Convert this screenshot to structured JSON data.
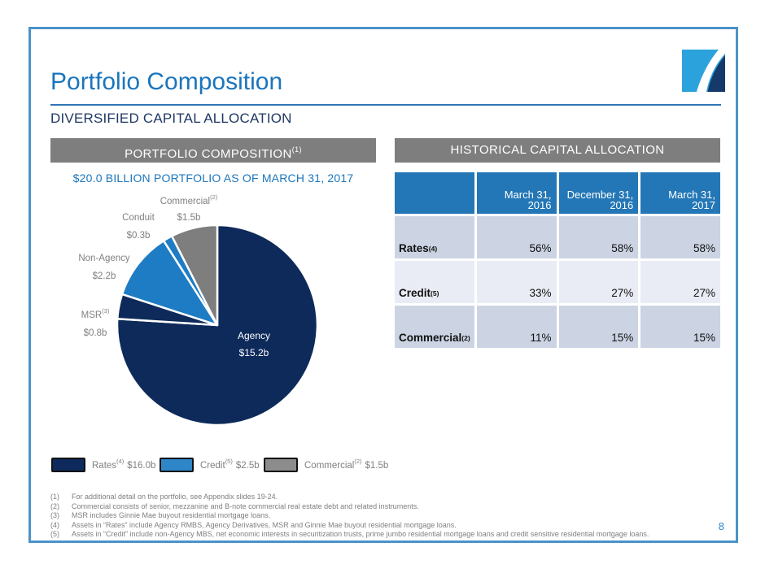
{
  "slide": {
    "title": "Portfolio Composition",
    "subtitle": "DIVERSIFIED CAPITAL ALLOCATION",
    "page_number": "8"
  },
  "left_panel": {
    "header": "PORTFOLIO COMPOSITION",
    "header_sup": "(1)"
  },
  "right_panel": {
    "header": "HISTORICAL CAPITAL ALLOCATION"
  },
  "chart_data": [
    {
      "type": "pie",
      "title": "$20.0 BILLION PORTFOLIO AS OF MARCH 31, 2017",
      "units": "USD billions",
      "total": 20.0,
      "start_angle": "12-oclock",
      "direction": "clockwise",
      "slices": [
        {
          "label": "Agency",
          "sup": "",
          "value": 15.2,
          "value_label": "$15.2b",
          "color": "#0d2a5a"
        },
        {
          "label": "MSR",
          "sup": "(3)",
          "value": 0.8,
          "value_label": "$0.8b",
          "color": "#0d2a5a"
        },
        {
          "label": "Non-Agency",
          "sup": "",
          "value": 2.2,
          "value_label": "$2.2b",
          "color": "#1e7cc4"
        },
        {
          "label": "Conduit",
          "sup": "",
          "value": 0.3,
          "value_label": "$0.3b",
          "color": "#1e7cc4"
        },
        {
          "label": "Commercial",
          "sup": "(2)",
          "value": 1.5,
          "value_label": "$1.5b",
          "color": "#7e7e7e"
        }
      ],
      "legend": [
        {
          "label": "Rates",
          "sup": "(4)",
          "value_label": "$16.0b",
          "color": "#0e2a5c"
        },
        {
          "label": "Credit",
          "sup": "(5)",
          "value_label": "$2.5b",
          "color": "#2e86c8"
        },
        {
          "label": "Commercial",
          "sup": "(2)",
          "value_label": "$1.5b",
          "color": "#8c8c8c"
        }
      ]
    },
    {
      "type": "table",
      "title": "HISTORICAL CAPITAL ALLOCATION",
      "columns": [
        "March 31,\n2016",
        "December 31,\n2016",
        "March 31,\n2017"
      ],
      "rows": [
        {
          "label": "Rates",
          "sup": "(4)",
          "values": [
            "56%",
            "58%",
            "58%"
          ]
        },
        {
          "label": "Credit",
          "sup": "(5)",
          "values": [
            "33%",
            "27%",
            "27%"
          ]
        },
        {
          "label": "Commercial",
          "sup": "(2)",
          "values": [
            "11%",
            "15%",
            "15%"
          ]
        }
      ]
    }
  ],
  "footnotes": [
    {
      "num": "(1)",
      "text": "For additional detail on the portfolio, see Appendix slides 19-24."
    },
    {
      "num": "(2)",
      "text": "Commercial consists of senior, mezzanine and B-note commercial real estate debt and related instruments."
    },
    {
      "num": "(3)",
      "text": "MSR includes Ginnie Mae buyout residential mortgage loans."
    },
    {
      "num": "(4)",
      "text": "Assets in “Rates” include Agency RMBS, Agency Derivatives, MSR and Ginnie Mae buyout residential mortgage loans."
    },
    {
      "num": "(5)",
      "text": "Assets in “Credit” include non-Agency MBS, net economic interests in securitization trusts, prime jumbo residential mortgage loans and credit sensitive residential mortgage loans."
    }
  ],
  "colors": {
    "accent_blue": "#1b75bc",
    "navy": "#203864",
    "frame_border": "#4a92c9",
    "section_bar": "#7e7e7e",
    "table_header": "#2377b6",
    "row_dark": "#ccd4e4",
    "row_light": "#e9ecf4"
  }
}
